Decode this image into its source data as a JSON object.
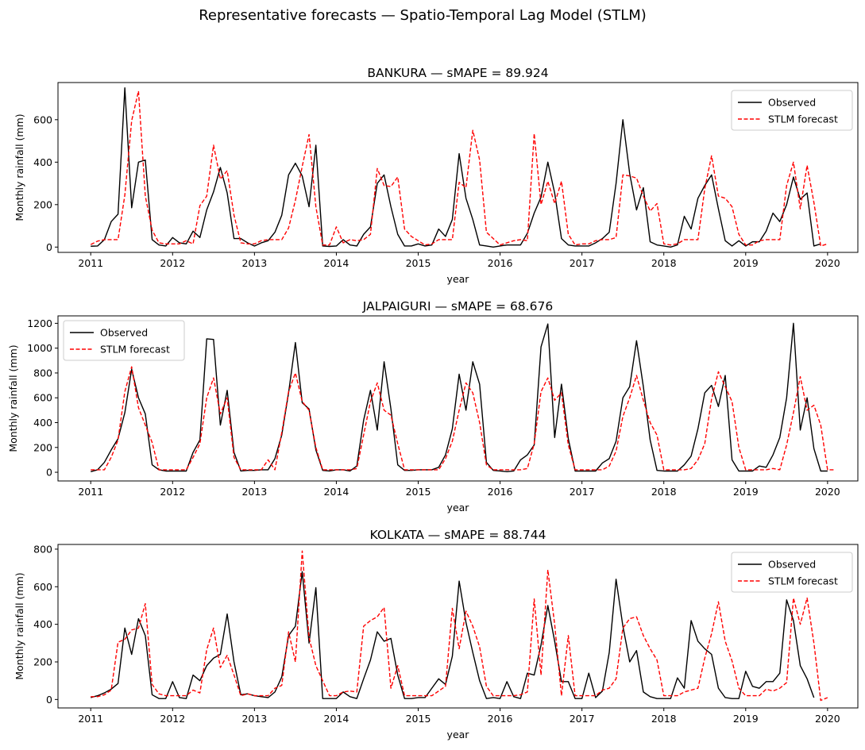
{
  "figure": {
    "title": "Representative forecasts — Spatio-Temporal Lag Model (STLM)"
  },
  "colors": {
    "observed": "#000000",
    "forecast": "#ff0000"
  },
  "chart_data": [
    {
      "type": "line",
      "title": "BANKURA  —  sMAPE = 89.924",
      "xlabel": "year",
      "ylabel": "Monthly rainfall (mm)",
      "xlim": [
        2010.6,
        2020.37
      ],
      "ylim": [
        -25,
        775
      ],
      "xticks": [
        2011,
        2012,
        2013,
        2014,
        2015,
        2016,
        2017,
        2018,
        2019,
        2020
      ],
      "yticks": [
        0,
        200,
        400,
        600
      ],
      "legend_position": "top-right",
      "x_start": 2011,
      "x_step_months": 1,
      "series": [
        {
          "name": "Observed",
          "style": "solid",
          "values": [
            4,
            5,
            35,
            120,
            155,
            750,
            185,
            400,
            410,
            35,
            10,
            5,
            45,
            20,
            15,
            75,
            45,
            175,
            260,
            375,
            255,
            40,
            40,
            20,
            5,
            20,
            30,
            70,
            150,
            340,
            395,
            335,
            190,
            480,
            5,
            3,
            5,
            35,
            10,
            5,
            60,
            95,
            300,
            340,
            190,
            60,
            5,
            5,
            15,
            5,
            10,
            85,
            50,
            130,
            440,
            230,
            130,
            10,
            5,
            0,
            5,
            10,
            10,
            10,
            65,
            160,
            235,
            400,
            255,
            40,
            10,
            5,
            5,
            5,
            20,
            40,
            70,
            300,
            600,
            345,
            175,
            280,
            25,
            10,
            5,
            0,
            10,
            145,
            85,
            230,
            290,
            340,
            180,
            30,
            5,
            30,
            5,
            25,
            25,
            75,
            160,
            120,
            200,
            330,
            225,
            255,
            5,
            15
          ]
        },
        {
          "name": "STLM forecast",
          "style": "dashed",
          "values": [
            12,
            28,
            35,
            35,
            35,
            245,
            595,
            735,
            240,
            80,
            20,
            15,
            15,
            15,
            30,
            15,
            195,
            240,
            480,
            320,
            360,
            150,
            20,
            15,
            15,
            30,
            35,
            35,
            35,
            90,
            220,
            380,
            530,
            190,
            10,
            10,
            95,
            20,
            35,
            30,
            35,
            60,
            370,
            290,
            285,
            330,
            85,
            50,
            30,
            10,
            15,
            35,
            35,
            35,
            305,
            280,
            550,
            410,
            70,
            40,
            10,
            20,
            30,
            35,
            30,
            535,
            200,
            310,
            205,
            310,
            60,
            10,
            15,
            15,
            30,
            35,
            35,
            45,
            340,
            335,
            325,
            240,
            170,
            205,
            15,
            10,
            15,
            35,
            35,
            35,
            275,
            430,
            240,
            230,
            190,
            60,
            10,
            10,
            30,
            35,
            35,
            35,
            290,
            400,
            180,
            385,
            210,
            5,
            15
          ]
        }
      ]
    },
    {
      "type": "line",
      "title": "JALPAIGURI  —  sMAPE = 68.676",
      "xlabel": "year",
      "ylabel": "Monthly rainfall (mm)",
      "xlim": [
        2010.6,
        2020.37
      ],
      "ylim": [
        -70,
        1260
      ],
      "xticks": [
        2011,
        2012,
        2013,
        2014,
        2015,
        2016,
        2017,
        2018,
        2019,
        2020
      ],
      "yticks": [
        0,
        200,
        400,
        600,
        800,
        1000,
        1200
      ],
      "legend_position": "top-left",
      "x_start": 2011,
      "x_step_months": 1,
      "series": [
        {
          "name": "Observed",
          "style": "solid",
          "values": [
            5,
            20,
            80,
            180,
            270,
            480,
            830,
            600,
            470,
            60,
            20,
            10,
            10,
            10,
            10,
            160,
            260,
            1075,
            1070,
            380,
            660,
            160,
            10,
            15,
            15,
            20,
            20,
            110,
            300,
            640,
            1045,
            560,
            510,
            180,
            15,
            10,
            20,
            20,
            10,
            50,
            420,
            660,
            340,
            890,
            510,
            60,
            15,
            15,
            20,
            20,
            20,
            40,
            140,
            350,
            790,
            500,
            890,
            710,
            80,
            15,
            10,
            5,
            10,
            100,
            140,
            220,
            1010,
            1195,
            280,
            710,
            270,
            10,
            10,
            10,
            10,
            75,
            110,
            250,
            600,
            690,
            1060,
            690,
            260,
            15,
            10,
            10,
            10,
            60,
            130,
            350,
            640,
            700,
            530,
            780,
            100,
            10,
            10,
            10,
            50,
            40,
            140,
            280,
            600,
            1200,
            340,
            600,
            190,
            10,
            10
          ]
        },
        {
          "name": "STLM forecast",
          "style": "dashed",
          "values": [
            20,
            20,
            20,
            120,
            260,
            650,
            850,
            520,
            380,
            240,
            20,
            20,
            20,
            20,
            20,
            120,
            230,
            600,
            760,
            470,
            600,
            120,
            20,
            20,
            20,
            20,
            100,
            20,
            320,
            650,
            800,
            570,
            500,
            200,
            20,
            20,
            20,
            20,
            20,
            30,
            300,
            570,
            720,
            500,
            460,
            230,
            20,
            20,
            20,
            20,
            20,
            20,
            110,
            250,
            500,
            720,
            640,
            400,
            60,
            20,
            20,
            20,
            20,
            20,
            30,
            230,
            650,
            760,
            580,
            640,
            220,
            20,
            20,
            20,
            20,
            20,
            50,
            170,
            450,
            600,
            780,
            580,
            400,
            300,
            20,
            20,
            20,
            20,
            30,
            100,
            230,
            590,
            810,
            690,
            570,
            200,
            20,
            20,
            20,
            20,
            30,
            20,
            220,
            480,
            770,
            500,
            540,
            380,
            20,
            20
          ]
        }
      ]
    },
    {
      "type": "line",
      "title": "KOLKATA  —  sMAPE = 88.744",
      "xlabel": "year",
      "ylabel": "Monthly rainfall (mm)",
      "xlim": [
        2010.6,
        2020.37
      ],
      "ylim": [
        -45,
        825
      ],
      "xticks": [
        2011,
        2012,
        2013,
        2014,
        2015,
        2016,
        2017,
        2018,
        2019,
        2020
      ],
      "yticks": [
        0,
        200,
        400,
        600,
        800
      ],
      "legend_position": "top-right",
      "x_start": 2011,
      "x_step_months": 1,
      "series": [
        {
          "name": "Observed",
          "style": "solid",
          "values": [
            10,
            20,
            35,
            55,
            85,
            380,
            240,
            430,
            340,
            25,
            5,
            5,
            95,
            10,
            5,
            130,
            100,
            180,
            220,
            240,
            455,
            200,
            25,
            30,
            20,
            15,
            10,
            40,
            120,
            340,
            390,
            680,
            300,
            595,
            5,
            5,
            5,
            40,
            15,
            5,
            110,
            210,
            360,
            310,
            325,
            130,
            5,
            5,
            10,
            10,
            60,
            110,
            80,
            230,
            630,
            410,
            250,
            100,
            5,
            10,
            5,
            95,
            15,
            5,
            140,
            130,
            290,
            500,
            310,
            95,
            95,
            5,
            5,
            140,
            10,
            45,
            250,
            640,
            390,
            200,
            260,
            40,
            15,
            5,
            5,
            5,
            115,
            60,
            420,
            310,
            270,
            240,
            60,
            10,
            5,
            5,
            150,
            70,
            60,
            95,
            95,
            140,
            530,
            420,
            180,
            110,
            10
          ]
        },
        {
          "name": "STLM forecast",
          "style": "dashed",
          "values": [
            15,
            15,
            25,
            50,
            305,
            320,
            370,
            380,
            510,
            80,
            30,
            20,
            20,
            20,
            20,
            50,
            35,
            265,
            380,
            170,
            235,
            130,
            20,
            30,
            20,
            20,
            20,
            60,
            75,
            360,
            200,
            790,
            330,
            180,
            100,
            20,
            20,
            40,
            45,
            40,
            390,
            420,
            440,
            490,
            60,
            180,
            20,
            20,
            20,
            20,
            20,
            45,
            70,
            485,
            270,
            470,
            390,
            280,
            70,
            20,
            20,
            20,
            20,
            25,
            40,
            535,
            130,
            690,
            400,
            20,
            340,
            20,
            20,
            20,
            20,
            50,
            60,
            110,
            380,
            430,
            440,
            340,
            270,
            210,
            20,
            20,
            20,
            40,
            50,
            60,
            220,
            350,
            520,
            310,
            205,
            60,
            20,
            20,
            20,
            55,
            45,
            60,
            90,
            540,
            400,
            540,
            300,
            -5,
            10
          ]
        }
      ]
    }
  ]
}
